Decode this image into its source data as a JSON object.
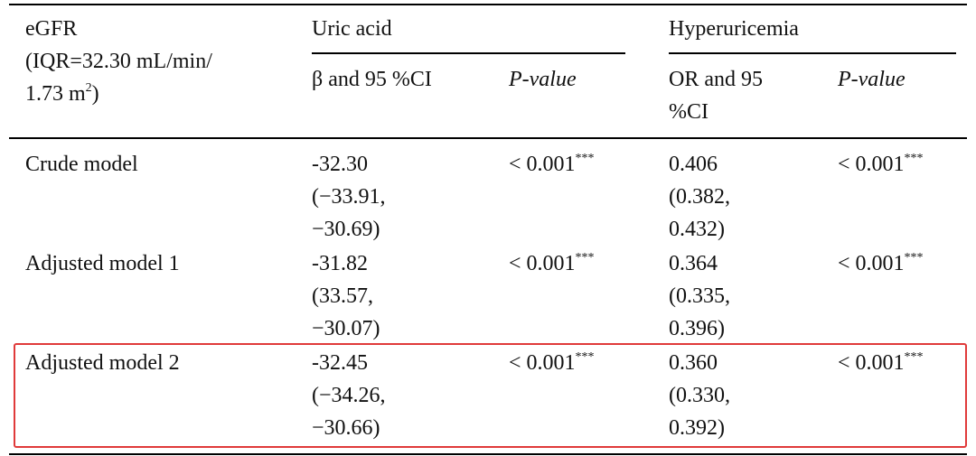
{
  "header": {
    "row_label": {
      "lines": [
        "eGFR",
        "(IQR=32.30 mL/min/",
        "1.73 m"
      ],
      "sup": "2",
      "tail": ")"
    },
    "groups": [
      "Uric acid",
      "Hyperuricemia"
    ],
    "sub": [
      "β and 95 %CI",
      "P-value",
      "OR and 95 %CI",
      "P-value"
    ]
  },
  "rows": [
    {
      "label": "Crude model",
      "beta": [
        "-32.30",
        "(−33.91,",
        "−30.69)"
      ],
      "p1": {
        "text": "< 0.001",
        "sup": "***"
      },
      "or": [
        "0.406",
        "(0.382,",
        "0.432)"
      ],
      "p2": {
        "text": "< 0.001",
        "sup": "***"
      }
    },
    {
      "label": "Adjusted model 1",
      "beta": [
        "-31.82",
        "(33.57,",
        "−30.07)"
      ],
      "p1": {
        "text": "< 0.001",
        "sup": "***"
      },
      "or": [
        "0.364",
        "(0.335,",
        "0.396)"
      ],
      "p2": {
        "text": "< 0.001",
        "sup": "***"
      }
    },
    {
      "label": "Adjusted model 2",
      "beta": [
        "-32.45",
        "(−34.26,",
        "−30.66)"
      ],
      "p1": {
        "text": "< 0.001",
        "sup": "***"
      },
      "or": [
        "0.360",
        "(0.330,",
        "0.392)"
      ],
      "p2": {
        "text": "< 0.001",
        "sup": "***"
      }
    }
  ]
}
